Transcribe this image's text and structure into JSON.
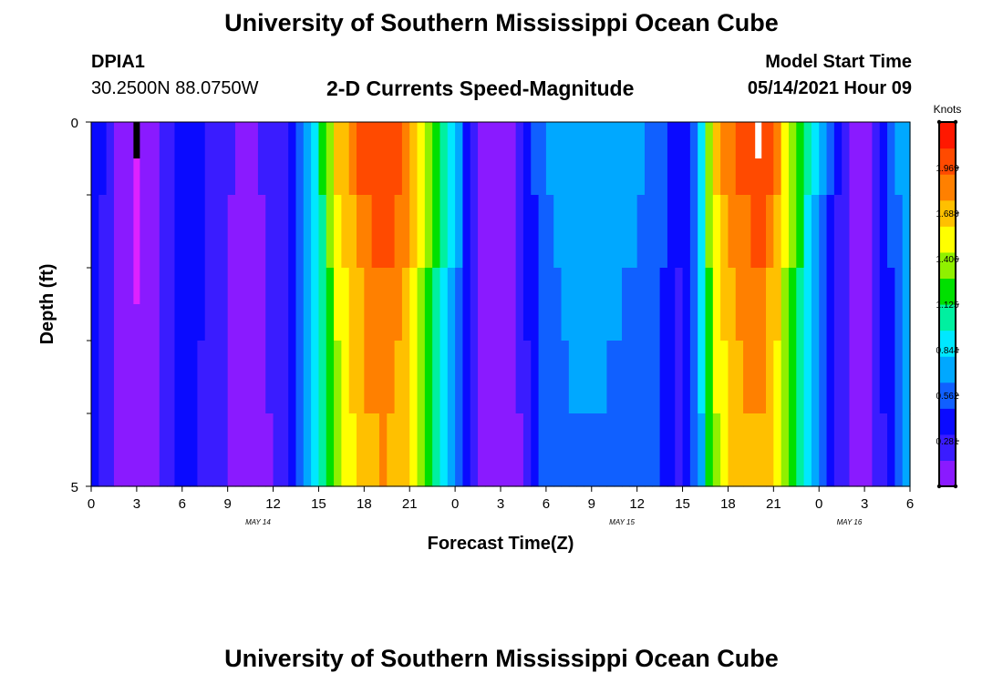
{
  "page": {
    "top_title": "University of Southern Mississippi Ocean Cube",
    "bottom_title": "University of Southern Mississippi Ocean Cube",
    "station_id": "DPIA1",
    "coordinates": "30.2500N  88.0750W",
    "chart_title": "2-D Currents Speed-Magnitude",
    "model_start_label": "Model Start Time",
    "model_start_value": "05/14/2021 Hour 09"
  },
  "colors": {
    "colormap": [
      "#8a1aff",
      "#3a1cff",
      "#0a0aff",
      "#1060ff",
      "#00a8ff",
      "#00e8ff",
      "#00f0a0",
      "#00e000",
      "#90f000",
      "#ffff00",
      "#ffc000",
      "#ff8000",
      "#ff4a00",
      "#ff1800"
    ],
    "marker_dark": "#000000",
    "marker_light": "#ffffff",
    "marker_magenta": "#dd22ff"
  },
  "chart_data": {
    "type": "heatmap",
    "title": "2-D Currents Speed-Magnitude",
    "xlabel": "Forecast Time(Z)",
    "ylabel": "Depth (ft)",
    "x_range_hours": [
      0,
      54
    ],
    "y_range_ft": [
      0,
      5
    ],
    "x_ticks": [
      {
        "hour": 0,
        "label": "0"
      },
      {
        "hour": 3,
        "label": "3"
      },
      {
        "hour": 6,
        "label": "6"
      },
      {
        "hour": 9,
        "label": "9"
      },
      {
        "hour": 12,
        "label": "12"
      },
      {
        "hour": 15,
        "label": "15"
      },
      {
        "hour": 18,
        "label": "18"
      },
      {
        "hour": 21,
        "label": "21"
      },
      {
        "hour": 24,
        "label": "0"
      },
      {
        "hour": 27,
        "label": "3"
      },
      {
        "hour": 30,
        "label": "6"
      },
      {
        "hour": 33,
        "label": "9"
      },
      {
        "hour": 36,
        "label": "12"
      },
      {
        "hour": 39,
        "label": "15"
      },
      {
        "hour": 42,
        "label": "18"
      },
      {
        "hour": 45,
        "label": "21"
      },
      {
        "hour": 48,
        "label": "0"
      },
      {
        "hour": 51,
        "label": "3"
      },
      {
        "hour": 54,
        "label": "6"
      }
    ],
    "date_labels": [
      {
        "hour": 11,
        "label": "MAY  14"
      },
      {
        "hour": 35,
        "label": "MAY  15"
      },
      {
        "hour": 50,
        "label": "MAY  16"
      }
    ],
    "y_ticks": [
      {
        "value": 0,
        "label": "0"
      },
      {
        "value": 5,
        "label": "5"
      }
    ],
    "y_minor_ticks": [
      1,
      2,
      3,
      4
    ],
    "colorbar": {
      "label": "Knots",
      "min": 0,
      "max": 2.25,
      "ticks": [
        0.281,
        0.562,
        0.844,
        1.125,
        1.406,
        1.688,
        1.969
      ]
    },
    "depth_layers": [
      0,
      1,
      2,
      3,
      4,
      5
    ],
    "speed_profile_keys": [
      {
        "hour": 0,
        "v": 0.55
      },
      {
        "hour": 0.5,
        "v": 0.4
      },
      {
        "hour": 1,
        "v": 0.25
      },
      {
        "hour": 2,
        "v": 0.1
      },
      {
        "hour": 3,
        "v": 0.05
      },
      {
        "hour": 4,
        "v": 0.12
      },
      {
        "hour": 5,
        "v": 0.27
      },
      {
        "hour": 6,
        "v": 0.45
      },
      {
        "hour": 7,
        "v": 0.4
      },
      {
        "hour": 8,
        "v": 0.25
      },
      {
        "hour": 9.5,
        "v": 0.15
      },
      {
        "hour": 11,
        "v": 0.15
      },
      {
        "hour": 12,
        "v": 0.2
      },
      {
        "hour": 13,
        "v": 0.35
      },
      {
        "hour": 14,
        "v": 0.7
      },
      {
        "hour": 15,
        "v": 1.05
      },
      {
        "hour": 16,
        "v": 1.55
      },
      {
        "hour": 17,
        "v": 1.8
      },
      {
        "hour": 18,
        "v": 2.0
      },
      {
        "hour": 19.5,
        "v": 2.1
      },
      {
        "hour": 21,
        "v": 1.85
      },
      {
        "hour": 22,
        "v": 1.45
      },
      {
        "hour": 23,
        "v": 1.15
      },
      {
        "hour": 24,
        "v": 0.8
      },
      {
        "hour": 25,
        "v": 0.35
      },
      {
        "hour": 26,
        "v": 0.08
      },
      {
        "hour": 27,
        "v": 0.05
      },
      {
        "hour": 28,
        "v": 0.1
      },
      {
        "hour": 29,
        "v": 0.45
      },
      {
        "hour": 30,
        "v": 0.62
      },
      {
        "hour": 31,
        "v": 0.72
      },
      {
        "hour": 33,
        "v": 0.75
      },
      {
        "hour": 36,
        "v": 0.7
      },
      {
        "hour": 37.5,
        "v": 0.55
      },
      {
        "hour": 39,
        "v": 0.3
      },
      {
        "hour": 40,
        "v": 0.7
      },
      {
        "hour": 41,
        "v": 1.6
      },
      {
        "hour": 42,
        "v": 1.9
      },
      {
        "hour": 44,
        "v": 2.1
      },
      {
        "hour": 45,
        "v": 1.9
      },
      {
        "hour": 46,
        "v": 1.5
      },
      {
        "hour": 47,
        "v": 1.1
      },
      {
        "hour": 48,
        "v": 0.75
      },
      {
        "hour": 49,
        "v": 0.4
      },
      {
        "hour": 50,
        "v": 0.15
      },
      {
        "hour": 51,
        "v": 0.1
      },
      {
        "hour": 52,
        "v": 0.3
      },
      {
        "hour": 53,
        "v": 0.6
      },
      {
        "hour": 54,
        "v": 0.85
      }
    ],
    "depth_factors": [
      1.0,
      0.95,
      0.9,
      0.88,
      0.85
    ],
    "markers": [
      {
        "hour": 3,
        "depth_from": 0,
        "depth_to": 0.5,
        "color": "dark"
      },
      {
        "hour": 3,
        "depth_from": 0.5,
        "depth_to": 2.5,
        "color": "magenta"
      },
      {
        "hour": 44,
        "depth_from": 0,
        "depth_to": 0.5,
        "color": "light"
      }
    ]
  }
}
